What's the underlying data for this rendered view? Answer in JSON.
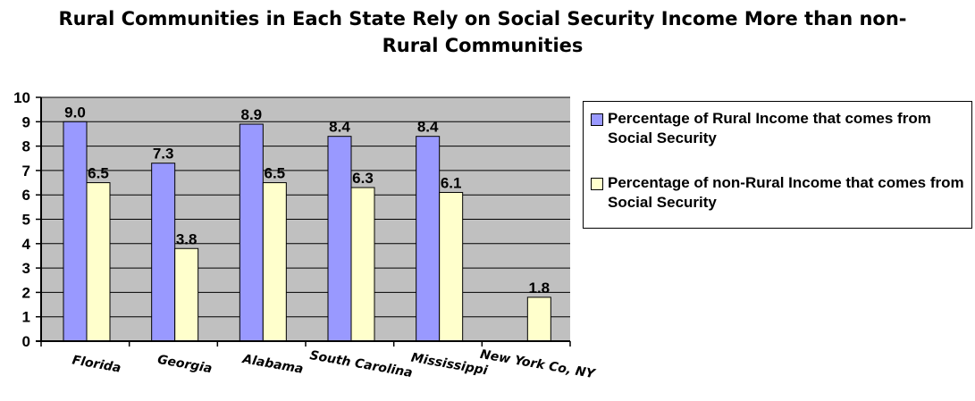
{
  "chart_data": {
    "type": "bar",
    "title": "Rural Communities in Each State Rely on Social Security Income More than non-Rural Communities",
    "categories": [
      "Florida",
      "Georgia",
      "Alabama",
      "South Carolina",
      "Mississippi",
      "New York Co, NY"
    ],
    "series": [
      {
        "name": "Percentage of Rural Income that comes from Social Security",
        "color": "#9999ff",
        "values": [
          9.0,
          7.3,
          8.9,
          8.4,
          8.4,
          null
        ],
        "labels": [
          "9.0",
          "7.3",
          "8.9",
          "8.4",
          "8.4",
          ""
        ]
      },
      {
        "name": "Percentage of non-Rural Income that comes from Social Security",
        "color": "#ffffcc",
        "values": [
          6.5,
          3.8,
          6.5,
          6.3,
          6.1,
          1.8
        ],
        "labels": [
          "6.5",
          "3.8",
          "6.5",
          "6.3",
          "6.1",
          "1.8"
        ]
      }
    ],
    "ylim": [
      0,
      10
    ],
    "yticks": [
      "0",
      "1",
      "2",
      "3",
      "4",
      "5",
      "6",
      "7",
      "8",
      "9",
      "10"
    ],
    "plot_background": "#c0c0c0",
    "grid": true,
    "legend_position": "right"
  }
}
